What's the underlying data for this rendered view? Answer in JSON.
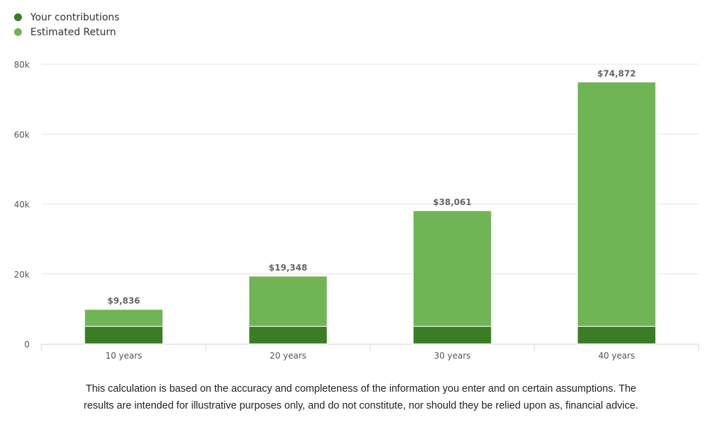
{
  "chart_data": {
    "type": "bar",
    "stacked": true,
    "categories": [
      "10 years",
      "20 years",
      "30 years",
      "40 years"
    ],
    "series": [
      {
        "name": "Your contributions",
        "color": "#3a7d23",
        "values": [
          5000,
          5000,
          5000,
          5000
        ]
      },
      {
        "name": "Estimated Return",
        "color": "#6fb455",
        "values": [
          4836,
          14348,
          33061,
          69872
        ]
      }
    ],
    "totals_labels": [
      "$9,836",
      "$19,348",
      "$38,061",
      "$74,872"
    ],
    "totals": [
      9836,
      19348,
      38061,
      74872
    ],
    "ylim": [
      0,
      80000
    ],
    "yticks": [
      0,
      20000,
      40000,
      60000,
      80000
    ],
    "ytick_labels": [
      "0",
      "20k",
      "40k",
      "60k",
      "80k"
    ],
    "grid": true,
    "legend": "top-left"
  },
  "disclaimer": {
    "line1": "This calculation is based on the accuracy and completeness of the information you enter and on certain assumptions. The",
    "line2": "results are intended for illustrative purposes only, and do not constitute, nor should they be relied upon as, financial advice."
  }
}
